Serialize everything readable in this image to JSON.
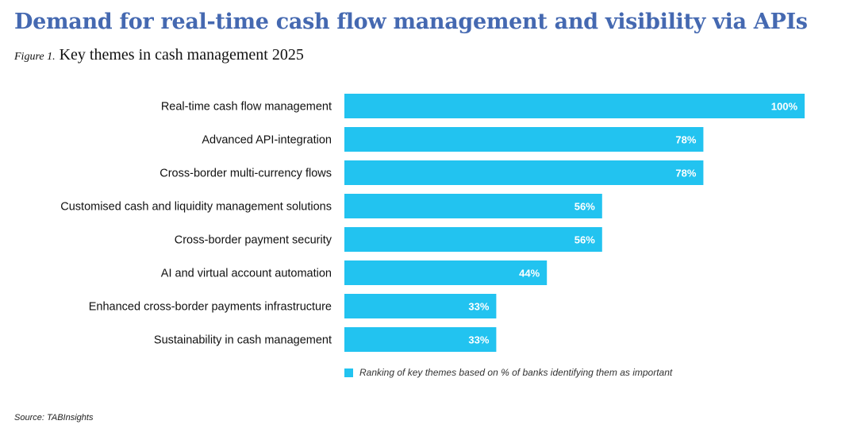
{
  "title": "Demand for real-time cash flow management and visibility via APIs",
  "figure_label": "Figure 1.",
  "subtitle": "Key themes in cash management 2025",
  "source": "Source: TABInsights",
  "colors": {
    "bar": "#22c3f0",
    "title": "#4569b1"
  },
  "chart_data": {
    "type": "bar",
    "orientation": "horizontal",
    "title": "Key themes in cash management 2025",
    "categories": [
      "Real-time cash flow management",
      "Advanced API-integration",
      "Cross-border multi-currency flows",
      "Customised cash and liquidity management solutions",
      "Cross-border payment security",
      "AI and virtual account automation",
      "Enhanced cross-border payments infrastructure",
      "Sustainability in cash management"
    ],
    "values": [
      100,
      78,
      78,
      56,
      56,
      44,
      33,
      33
    ],
    "labels": [
      "100%",
      "78%",
      "78%",
      "56%",
      "56%",
      "44%",
      "33%",
      "33%"
    ],
    "xlim": [
      0,
      100
    ],
    "grid": false,
    "legend": {
      "position": "bottom",
      "entries": [
        "Ranking of key themes based on % of banks identifying them as important"
      ]
    }
  }
}
